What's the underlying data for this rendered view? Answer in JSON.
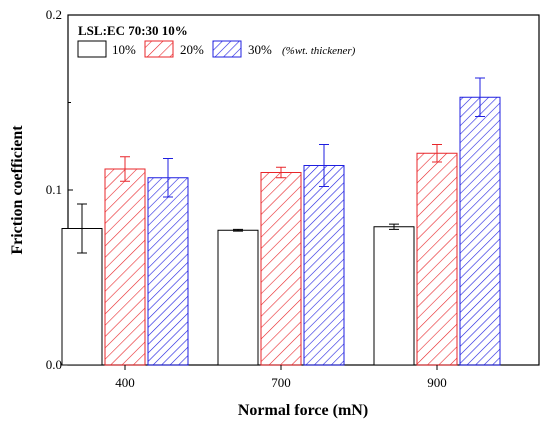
{
  "chart_data": {
    "type": "bar",
    "title": "LSL:EC 70:30 10%",
    "xlabel": "Normal force (mN)",
    "ylabel": "Friction coefficient",
    "categories": [
      "400",
      "700",
      "900"
    ],
    "ylim": [
      0,
      0.2
    ],
    "yticks": [
      0.0,
      0.1,
      0.2
    ],
    "ytick_labels": [
      "0.0",
      "0.1",
      "0.2"
    ],
    "legend_note": "(%wt. thickener)",
    "legend_placement": "top-left",
    "grid": false,
    "series": [
      {
        "name": "10%",
        "values": [
          0.078,
          0.077,
          0.079
        ],
        "errors": [
          0.014,
          0.0005,
          0.0015
        ],
        "color": "#000000",
        "pattern": "none"
      },
      {
        "name": "20%",
        "values": [
          0.112,
          0.11,
          0.121
        ],
        "errors": [
          0.007,
          0.003,
          0.005
        ],
        "color": "#e8262a",
        "pattern": "hatch"
      },
      {
        "name": "30%",
        "values": [
          0.107,
          0.114,
          0.153
        ],
        "errors": [
          0.011,
          0.012,
          0.011
        ],
        "color": "#1f1fe0",
        "pattern": "hatch"
      }
    ]
  }
}
